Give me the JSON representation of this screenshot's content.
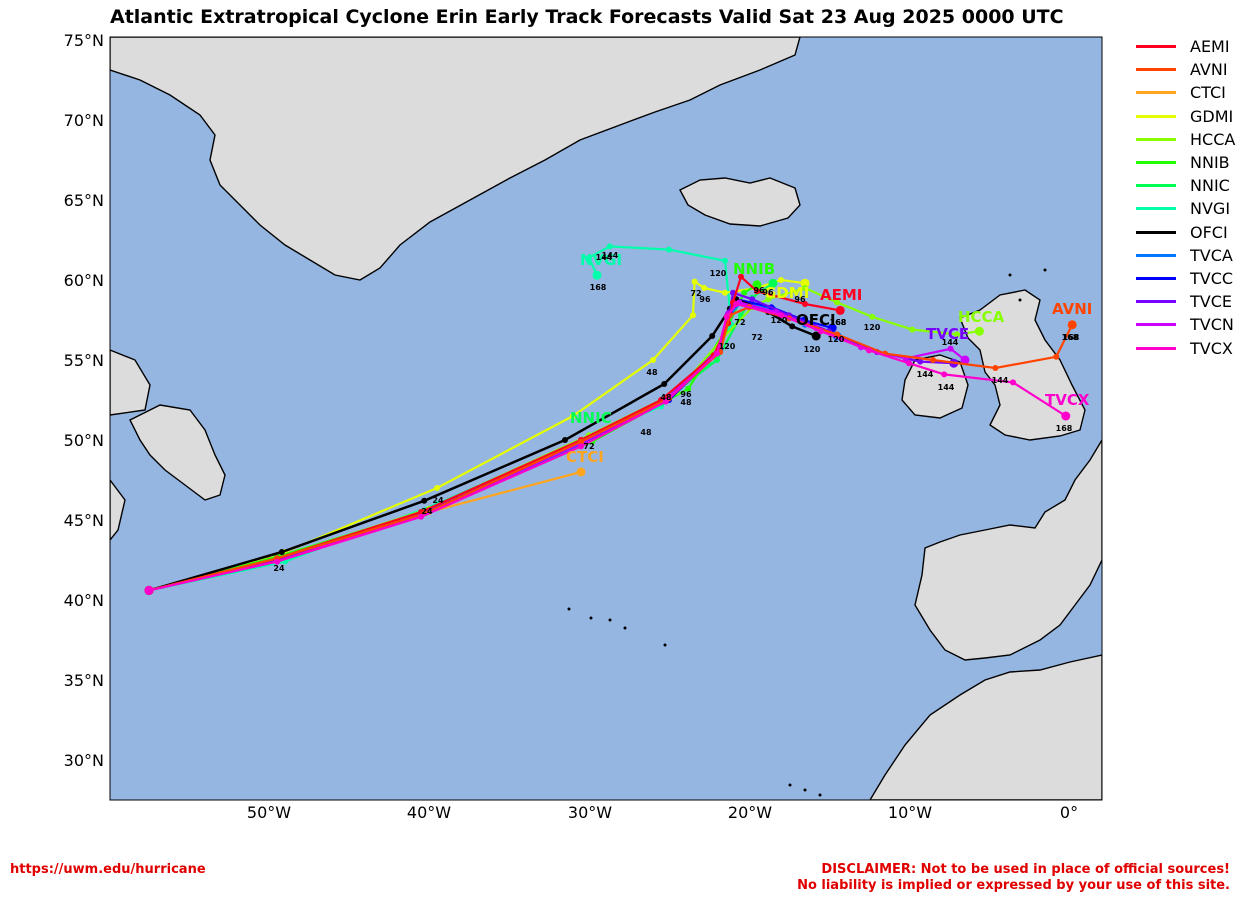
{
  "title": "Atlantic Extratropical Cyclone Erin Early Track Forecasts Valid Sat 23 Aug 2025 0000 UTC",
  "colors": {
    "ocean": "#96b6e2",
    "land": "#dcdcdc",
    "coast": "#000000",
    "disclaimer": "#e00000"
  },
  "axes": {
    "lat_ticks": [
      "75°N",
      "70°N",
      "65°N",
      "60°N",
      "55°N",
      "50°N",
      "45°N",
      "40°N",
      "35°N",
      "30°N"
    ],
    "lon_ticks": [
      "50°W",
      "40°W",
      "30°W",
      "20°W",
      "10°W",
      "0°"
    ]
  },
  "legend": [
    {
      "name": "AEMI",
      "color": "#ff0022"
    },
    {
      "name": "AVNI",
      "color": "#ff4400"
    },
    {
      "name": "CTCI",
      "color": "#ffa520"
    },
    {
      "name": "GDMI",
      "color": "#e6ff00"
    },
    {
      "name": "HCCA",
      "color": "#88ff00"
    },
    {
      "name": "NNIB",
      "color": "#22ff00"
    },
    {
      "name": "NNIC",
      "color": "#00ff55"
    },
    {
      "name": "NVGI",
      "color": "#00ffaa"
    },
    {
      "name": "OFCI",
      "color": "#000000"
    },
    {
      "name": "TVCA",
      "color": "#0077ff"
    },
    {
      "name": "TVCC",
      "color": "#0000ff"
    },
    {
      "name": "TVCE",
      "color": "#7700ff"
    },
    {
      "name": "TVCN",
      "color": "#cc00ff"
    },
    {
      "name": "TVCX",
      "color": "#ff00cc"
    }
  ],
  "map_labels": [
    {
      "text": "AEMI",
      "color": "#ff0022"
    },
    {
      "text": "AVNI",
      "color": "#ff4400"
    },
    {
      "text": "NNIB",
      "color": "#22ff00"
    },
    {
      "text": "GDMI",
      "color": "#e6ff00"
    },
    {
      "text": "OFCI",
      "color": "#000000"
    },
    {
      "text": "HCCA",
      "color": "#88ff00"
    },
    {
      "text": "TVCE",
      "color": "#7700ff"
    },
    {
      "text": "TVCX",
      "color": "#ff00cc"
    },
    {
      "text": "NVGI",
      "color": "#00ffaa"
    },
    {
      "text": "NNIC",
      "color": "#00ff55"
    },
    {
      "text": "CTCI",
      "color": "#ffa520"
    }
  ],
  "tracks": [
    {
      "name": "NVGI",
      "color": "#00ffaa",
      "points": [
        [
          -57.5,
          40.6
        ],
        [
          -49,
          42.4
        ],
        [
          -39.5,
          46
        ],
        [
          -30,
          50.2
        ],
        [
          -25.5,
          52.1
        ],
        [
          -22.5,
          54.8
        ],
        [
          -21.1,
          57.2
        ],
        [
          -21.5,
          61.2
        ],
        [
          -25,
          61.9
        ],
        [
          -28.7,
          62.1
        ],
        [
          -30,
          61.4
        ],
        [
          -29.5,
          60.3
        ]
      ]
    },
    {
      "name": "GDMI",
      "color": "#e6ff00",
      "points": [
        [
          -57.5,
          40.6
        ],
        [
          -49,
          43
        ],
        [
          -39.5,
          47
        ],
        [
          -31,
          51.5
        ],
        [
          -26,
          55
        ],
        [
          -23.5,
          57.8
        ],
        [
          -23.4,
          59.9
        ],
        [
          -22.8,
          59.5
        ],
        [
          -21.5,
          59.2
        ],
        [
          -19.5,
          59.5
        ],
        [
          -18,
          60
        ],
        [
          -16.5,
          59.8
        ]
      ]
    },
    {
      "name": "CTCI",
      "color": "#ffa520",
      "points": [
        [
          -57.5,
          40.6
        ],
        [
          -50,
          42.5
        ],
        [
          -40,
          45.5
        ],
        [
          -30.5,
          48
        ]
      ]
    },
    {
      "name": "NNIC",
      "color": "#00ff55",
      "points": [
        [
          -57.5,
          40.6
        ],
        [
          -49.5,
          42.5
        ],
        [
          -39.5,
          45.8
        ],
        [
          -30,
          50
        ],
        [
          -25.5,
          52.3
        ],
        [
          -22,
          55
        ],
        [
          -20.5,
          57.8
        ],
        [
          -19.8,
          58.9
        ],
        [
          -18.5,
          59.8
        ]
      ]
    },
    {
      "name": "NNIB",
      "color": "#22ff00",
      "points": [
        [
          -57.5,
          40.6
        ],
        [
          -49.5,
          42.7
        ],
        [
          -39.5,
          45.8
        ],
        [
          -29.8,
          49.9
        ],
        [
          -23.8,
          53.2
        ],
        [
          -21.5,
          56.8
        ],
        [
          -20.3,
          59.2
        ],
        [
          -19.5,
          59.7
        ]
      ]
    },
    {
      "name": "HCCA",
      "color": "#88ff00",
      "points": [
        [
          -57.5,
          40.6
        ],
        [
          -49.5,
          42.6
        ],
        [
          -40,
          45.7
        ],
        [
          -30,
          50.3
        ],
        [
          -24.5,
          53
        ],
        [
          -21.7,
          56.3
        ],
        [
          -19.8,
          58.3
        ],
        [
          -18.8,
          58.8
        ],
        [
          -16.5,
          59.5
        ],
        [
          -14.5,
          58.6
        ],
        [
          -12.3,
          57.7
        ],
        [
          -9.8,
          56.9
        ],
        [
          -7,
          56.6
        ],
        [
          -5.6,
          56.8
        ]
      ]
    },
    {
      "name": "TVCA",
      "color": "#0077ff",
      "points": [
        [
          -57.5,
          40.6
        ],
        [
          -49.5,
          42.5
        ],
        [
          -40.5,
          45.3
        ],
        [
          -30.5,
          49.7
        ],
        [
          -25,
          52.5
        ],
        [
          -21.8,
          55.6
        ],
        [
          -21.2,
          57.8
        ],
        [
          -20.5,
          58.6
        ],
        [
          -18.5,
          58.2
        ],
        [
          -16.5,
          57.2
        ],
        [
          -14.5,
          56.5
        ]
      ]
    },
    {
      "name": "TVCC",
      "color": "#0000ff",
      "points": [
        [
          -57.5,
          40.6
        ],
        [
          -49.5,
          42.5
        ],
        [
          -40.5,
          45.3
        ],
        [
          -30.5,
          49.8
        ],
        [
          -25,
          52.5
        ],
        [
          -21.8,
          55.7
        ],
        [
          -21.3,
          57.9
        ],
        [
          -20.8,
          58.8
        ],
        [
          -18.6,
          58.3
        ],
        [
          -16.6,
          57.5
        ],
        [
          -14.8,
          57
        ]
      ]
    },
    {
      "name": "OFCI",
      "color": "#000000",
      "points": [
        [
          -57.5,
          40.6
        ],
        [
          -49.2,
          43
        ],
        [
          -40.3,
          46.2
        ],
        [
          -31.5,
          50
        ],
        [
          -25.3,
          53.5
        ],
        [
          -22.3,
          56.5
        ],
        [
          -21.2,
          58.2
        ],
        [
          -20.8,
          58.8
        ],
        [
          -18.8,
          58
        ],
        [
          -17.3,
          57.1
        ],
        [
          -15.8,
          56.5
        ]
      ]
    },
    {
      "name": "TVCE",
      "color": "#7700ff",
      "points": [
        [
          -57.5,
          40.6
        ],
        [
          -49.5,
          42.5
        ],
        [
          -40.5,
          45.4
        ],
        [
          -30.5,
          50
        ],
        [
          -25,
          52.7
        ],
        [
          -21.8,
          55.8
        ],
        [
          -21.2,
          58
        ],
        [
          -21,
          59.2
        ],
        [
          -19.8,
          58.8
        ],
        [
          -17.5,
          57.8
        ],
        [
          -15,
          56.8
        ],
        [
          -12,
          55.5
        ],
        [
          -9.3,
          54.9
        ],
        [
          -7.2,
          54.8
        ]
      ]
    },
    {
      "name": "TVCN",
      "color": "#cc00ff",
      "points": [
        [
          -57.5,
          40.6
        ],
        [
          -49.5,
          42.4
        ],
        [
          -40.5,
          45.3
        ],
        [
          -30.5,
          49.8
        ],
        [
          -25.2,
          52.5
        ],
        [
          -21.9,
          55.7
        ],
        [
          -21.3,
          57.9
        ],
        [
          -20.6,
          58.6
        ],
        [
          -18.3,
          58
        ],
        [
          -15.8,
          57
        ],
        [
          -13,
          55.8
        ],
        [
          -10.2,
          55.1
        ],
        [
          -7.4,
          55.7
        ],
        [
          -6.5,
          55
        ]
      ]
    },
    {
      "name": "AEMI",
      "color": "#ff0022",
      "points": [
        [
          -57.5,
          40.6
        ],
        [
          -49.5,
          42.6
        ],
        [
          -40.5,
          45.5
        ],
        [
          -30.5,
          50
        ],
        [
          -25.5,
          52.5
        ],
        [
          -22.2,
          55.3
        ],
        [
          -21.3,
          57.3
        ],
        [
          -21,
          58.6
        ],
        [
          -20.5,
          60.2
        ],
        [
          -19.5,
          59.3
        ],
        [
          -16.5,
          58.5
        ],
        [
          -14.3,
          58.1
        ]
      ]
    },
    {
      "name": "AVNI",
      "color": "#ff4400",
      "points": [
        [
          -57.5,
          40.6
        ],
        [
          -49.5,
          42.6
        ],
        [
          -40.3,
          45.4
        ],
        [
          -30.5,
          49.9
        ],
        [
          -25,
          52.6
        ],
        [
          -21.8,
          55.5
        ],
        [
          -21.2,
          57.8
        ],
        [
          -20,
          58.3
        ],
        [
          -17.5,
          57.6
        ],
        [
          -14.5,
          56.6
        ],
        [
          -11.5,
          55.4
        ],
        [
          -8.5,
          55
        ],
        [
          -4.6,
          54.5
        ],
        [
          -0.8,
          55.2
        ],
        [
          0.2,
          57.2
        ]
      ]
    },
    {
      "name": "TVCX",
      "color": "#ff00cc",
      "points": [
        [
          -57.5,
          40.6
        ],
        [
          -49.5,
          42.4
        ],
        [
          -40.5,
          45.2
        ],
        [
          -30.5,
          49.6
        ],
        [
          -25.2,
          52.4
        ],
        [
          -22,
          55.4
        ],
        [
          -21.4,
          57.7
        ],
        [
          -20.8,
          58.5
        ],
        [
          -18,
          57.8
        ],
        [
          -15.5,
          56.8
        ],
        [
          -12.5,
          55.6
        ],
        [
          -10,
          54.8
        ],
        [
          -7.8,
          54.1
        ],
        [
          -3.5,
          53.6
        ],
        [
          -0.2,
          51.5
        ]
      ]
    }
  ],
  "lead_labels": [
    "24",
    "48",
    "72",
    "96",
    "120",
    "144",
    "168",
    "72",
    "96",
    "120",
    "144",
    "168",
    "48",
    "96",
    "120",
    "144",
    "168",
    "120",
    "144",
    "168",
    "24",
    "48",
    "72",
    "96",
    "120",
    "144",
    "168",
    "24",
    "48",
    "72",
    "96",
    "120",
    "144",
    "168"
  ],
  "footer": {
    "url": "https://uwm.edu/hurricane",
    "disclaimer_line1": "DISCLAIMER: Not to be used in place of official sources!",
    "disclaimer_line2": "No liability is implied or expressed by your use of this site."
  }
}
